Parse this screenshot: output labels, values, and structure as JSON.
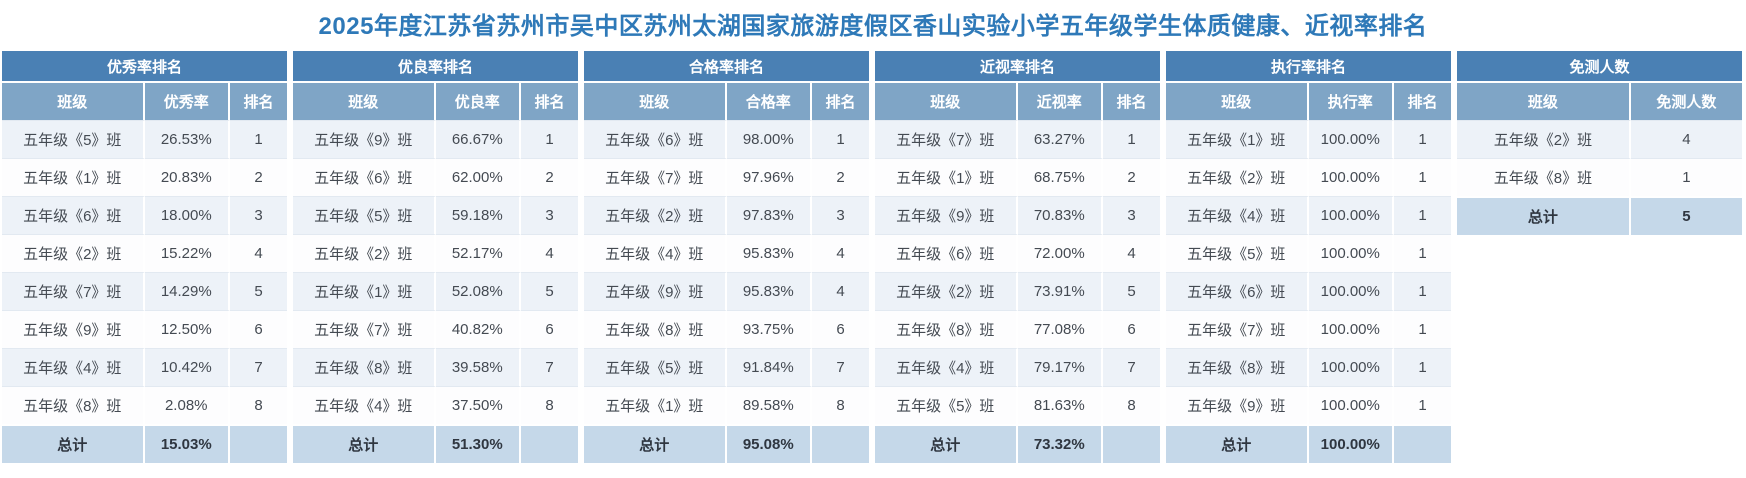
{
  "page": {
    "title": "2025年度江苏省苏州市吴中区苏州太湖国家旅游度假区香山实验小学五年级学生体质健康、近视率排名",
    "title_color": "#2e79b8"
  },
  "colors": {
    "table_caption_bg": "#4a80b4",
    "column_header_bg": "#7fa5c6",
    "odd_row_bg": "#edf2f8",
    "even_row_bg": "#fdfdfe",
    "footer_bg": "#c5d8e9"
  },
  "tables": [
    {
      "title": "优秀率排名",
      "columns": [
        "班级",
        "优秀率",
        "排名"
      ],
      "col_widths": [
        "50%",
        "30%",
        "20%"
      ],
      "rows": [
        [
          "五年级《5》班",
          "26.53%",
          "1"
        ],
        [
          "五年级《1》班",
          "20.83%",
          "2"
        ],
        [
          "五年级《6》班",
          "18.00%",
          "3"
        ],
        [
          "五年级《2》班",
          "15.22%",
          "4"
        ],
        [
          "五年级《7》班",
          "14.29%",
          "5"
        ],
        [
          "五年级《9》班",
          "12.50%",
          "6"
        ],
        [
          "五年级《4》班",
          "10.42%",
          "7"
        ],
        [
          "五年级《8》班",
          "2.08%",
          "8"
        ]
      ],
      "footer": [
        "总计",
        "15.03%",
        ""
      ]
    },
    {
      "title": "优良率排名",
      "columns": [
        "班级",
        "优良率",
        "排名"
      ],
      "col_widths": [
        "50%",
        "30%",
        "20%"
      ],
      "rows": [
        [
          "五年级《9》班",
          "66.67%",
          "1"
        ],
        [
          "五年级《6》班",
          "62.00%",
          "2"
        ],
        [
          "五年级《5》班",
          "59.18%",
          "3"
        ],
        [
          "五年级《2》班",
          "52.17%",
          "4"
        ],
        [
          "五年级《1》班",
          "52.08%",
          "5"
        ],
        [
          "五年级《7》班",
          "40.82%",
          "6"
        ],
        [
          "五年级《8》班",
          "39.58%",
          "7"
        ],
        [
          "五年级《4》班",
          "37.50%",
          "8"
        ]
      ],
      "footer": [
        "总计",
        "51.30%",
        ""
      ]
    },
    {
      "title": "合格率排名",
      "columns": [
        "班级",
        "合格率",
        "排名"
      ],
      "col_widths": [
        "50%",
        "30%",
        "20%"
      ],
      "rows": [
        [
          "五年级《6》班",
          "98.00%",
          "1"
        ],
        [
          "五年级《7》班",
          "97.96%",
          "2"
        ],
        [
          "五年级《2》班",
          "97.83%",
          "3"
        ],
        [
          "五年级《4》班",
          "95.83%",
          "4"
        ],
        [
          "五年级《9》班",
          "95.83%",
          "4"
        ],
        [
          "五年级《8》班",
          "93.75%",
          "6"
        ],
        [
          "五年级《5》班",
          "91.84%",
          "7"
        ],
        [
          "五年级《1》班",
          "89.58%",
          "8"
        ]
      ],
      "footer": [
        "总计",
        "95.08%",
        ""
      ]
    },
    {
      "title": "近视率排名",
      "columns": [
        "班级",
        "近视率",
        "排名"
      ],
      "col_widths": [
        "50%",
        "30%",
        "20%"
      ],
      "rows": [
        [
          "五年级《7》班",
          "63.27%",
          "1"
        ],
        [
          "五年级《1》班",
          "68.75%",
          "2"
        ],
        [
          "五年级《9》班",
          "70.83%",
          "3"
        ],
        [
          "五年级《6》班",
          "72.00%",
          "4"
        ],
        [
          "五年级《2》班",
          "73.91%",
          "5"
        ],
        [
          "五年级《8》班",
          "77.08%",
          "6"
        ],
        [
          "五年级《4》班",
          "79.17%",
          "7"
        ],
        [
          "五年级《5》班",
          "81.63%",
          "8"
        ]
      ],
      "footer": [
        "总计",
        "73.32%",
        ""
      ]
    },
    {
      "title": "执行率排名",
      "columns": [
        "班级",
        "执行率",
        "排名"
      ],
      "col_widths": [
        "50%",
        "30%",
        "20%"
      ],
      "rows": [
        [
          "五年级《1》班",
          "100.00%",
          "1"
        ],
        [
          "五年级《2》班",
          "100.00%",
          "1"
        ],
        [
          "五年级《4》班",
          "100.00%",
          "1"
        ],
        [
          "五年级《5》班",
          "100.00%",
          "1"
        ],
        [
          "五年级《6》班",
          "100.00%",
          "1"
        ],
        [
          "五年级《7》班",
          "100.00%",
          "1"
        ],
        [
          "五年级《8》班",
          "100.00%",
          "1"
        ],
        [
          "五年级《9》班",
          "100.00%",
          "1"
        ]
      ],
      "footer": [
        "总计",
        "100.00%",
        ""
      ]
    },
    {
      "title": "免测人数",
      "columns": [
        "班级",
        "免测人数"
      ],
      "col_widths": [
        "61%",
        "39%"
      ],
      "rows": [
        [
          "五年级《2》班",
          "4"
        ],
        [
          "五年级《8》班",
          "1"
        ]
      ],
      "footer": [
        "总计",
        "5"
      ]
    }
  ]
}
